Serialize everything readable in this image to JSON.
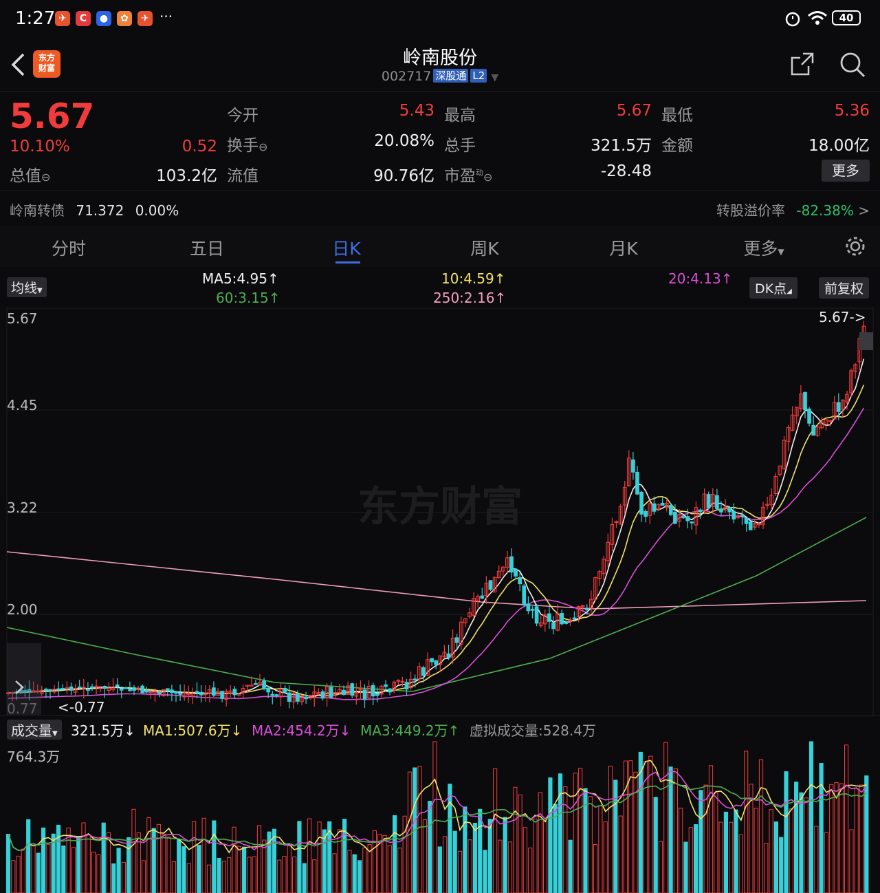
{
  "status": {
    "time": "1:27",
    "ellipsis": "···",
    "battery": "40"
  },
  "header": {
    "title": "岭南股份",
    "code": "002717",
    "tag1": "深股通",
    "tag2": "L2",
    "logo": "东方财富"
  },
  "quote": {
    "price": "5.67",
    "change_pct": "10.10%",
    "change": "0.52",
    "open_label": "今开",
    "open": "5.43",
    "high_label": "最高",
    "high": "5.67",
    "low_label": "最低",
    "low": "5.36",
    "turnover_label": "换手",
    "turnover": "20.08%",
    "volume_label": "总手",
    "volume": "321.5万",
    "amount_label": "金额",
    "amount": "18.00亿",
    "mktcap_label": "总值",
    "mktcap": "103.2亿",
    "float_label": "流值",
    "float": "90.76亿",
    "pe_label": "市盈",
    "pe_sup": "动",
    "pe": "-28.48",
    "more": "更多"
  },
  "bond": {
    "name": "岭南转债",
    "price": "71.372",
    "pct": "0.00%",
    "premium_label": "转股溢价率",
    "premium": "-82.38%",
    "arrow": ">"
  },
  "tabs": [
    {
      "label": "分时"
    },
    {
      "label": "五日"
    },
    {
      "label": "日K"
    },
    {
      "label": "周K"
    },
    {
      "label": "月K"
    },
    {
      "label": "更多"
    }
  ],
  "chart": {
    "ma_selector": "均线",
    "ma5": "MA5:4.95",
    "ma10": "10:4.59",
    "ma20": "20:4.13",
    "ma60": "60:3.15",
    "ma250": "250:2.16",
    "dk_button": "DK点",
    "adjust_button": "前复权",
    "y_labels": [
      "5.67",
      "4.45",
      "3.22",
      "2.00",
      "0.77"
    ],
    "high_marker": "5.67->",
    "low_marker": "<-0.77",
    "watermark": "东方财富",
    "colors": {
      "up": "#f23c3c",
      "down": "#35d0d8",
      "ma5": "#f2f2f2",
      "ma10": "#f2e46a",
      "ma20": "#d94fd6",
      "ma60": "#4caf50",
      "ma250": "#f0a0b8"
    }
  },
  "volume": {
    "selector": "成交量",
    "value": "321.5万",
    "ma1": "MA1:507.6万",
    "ma2": "MA2:454.2万",
    "ma3": "MA3:449.2万",
    "virtual": "虚拟成交量:528.4万",
    "max_label": "764.3万"
  }
}
